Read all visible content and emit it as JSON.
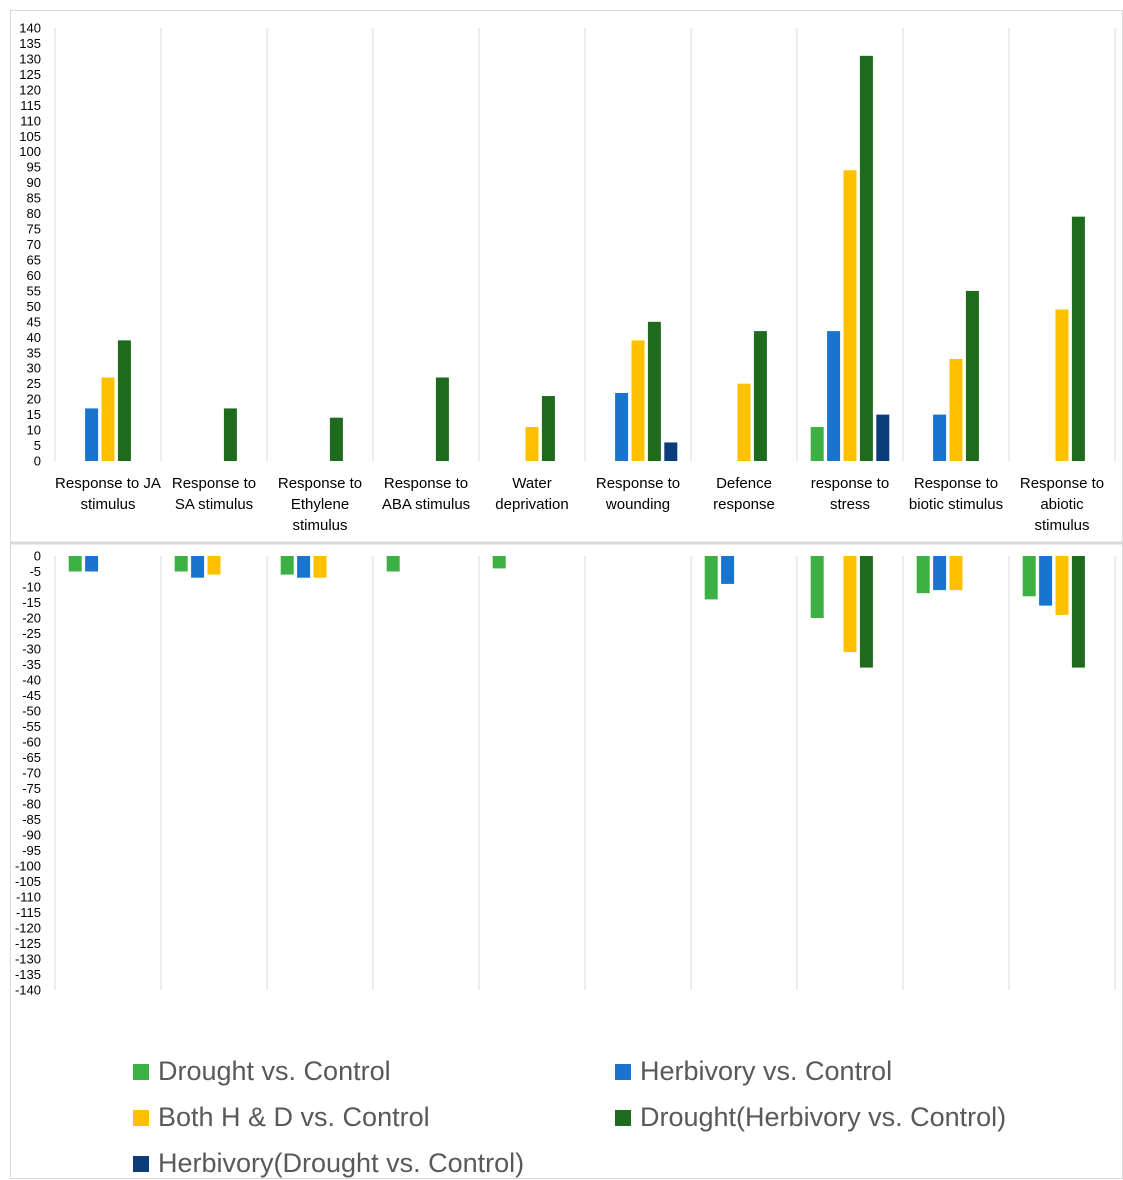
{
  "chart_data": [
    {
      "type": "bar",
      "panel": "upregulated",
      "ylim": [
        0,
        140
      ],
      "ytick_step": 5,
      "categories": [
        "Response to JA stimulus",
        "Response to SA stimulus",
        "Response to Ethylene stimulus",
        "Response to ABA stimulus",
        "Water deprivation",
        "Response to wounding",
        "Defence response",
        "response to stress",
        "Response to biotic stimulus",
        "Response to abiotic stimulus"
      ],
      "category_label_lines": [
        [
          "Response to JA",
          "stimulus"
        ],
        [
          "Response to",
          "SA stimulus"
        ],
        [
          "Response to",
          "Ethylene",
          "stimulus"
        ],
        [
          "Response to",
          "ABA stimulus"
        ],
        [
          "Water",
          "deprivation"
        ],
        [
          "Response to",
          "wounding"
        ],
        [
          "Defence",
          "response"
        ],
        [
          "response to",
          "stress"
        ],
        [
          "Response to",
          "biotic stimulus"
        ],
        [
          "Response to",
          "abiotic",
          "stimulus"
        ]
      ],
      "series": [
        {
          "name": "Drought vs. Control",
          "color": "#3cb043",
          "values": [
            0,
            0,
            0,
            0,
            0,
            0,
            0,
            11,
            0,
            0
          ]
        },
        {
          "name": "Herbivory vs. Control",
          "color": "#1874cd",
          "values": [
            17,
            0,
            0,
            0,
            0,
            22,
            0,
            42,
            15,
            0
          ]
        },
        {
          "name": "Both H & D vs. Control",
          "color": "#ffc000",
          "values": [
            27,
            0,
            0,
            0,
            11,
            39,
            25,
            94,
            33,
            49
          ]
        },
        {
          "name": "Drought(Herbivory vs. Control)",
          "color": "#1e6b1e",
          "values": [
            39,
            17,
            14,
            27,
            21,
            45,
            42,
            131,
            55,
            79
          ]
        },
        {
          "name": "Herbivory(Drought vs. Control)",
          "color": "#0a3d7a",
          "values": [
            0,
            0,
            0,
            0,
            0,
            6,
            0,
            15,
            0,
            0
          ]
        }
      ]
    },
    {
      "type": "bar",
      "panel": "downregulated",
      "ylim": [
        -140,
        0
      ],
      "ytick_step": 5,
      "categories": [
        "Response to JA stimulus",
        "Response to SA stimulus",
        "Response to Ethylene stimulus",
        "Response to ABA stimulus",
        "Water deprivation",
        "Response to wounding",
        "Defence response",
        "response to stress",
        "Response to biotic stimulus",
        "Response to abiotic stimulus"
      ],
      "series": [
        {
          "name": "Drought vs. Control",
          "color": "#3cb043",
          "values": [
            -5,
            -5,
            -6,
            -5,
            -4,
            0,
            -14,
            -20,
            -12,
            -13
          ]
        },
        {
          "name": "Herbivory vs. Control",
          "color": "#1874cd",
          "values": [
            -5,
            -7,
            -7,
            0,
            0,
            0,
            -9,
            0,
            -11,
            -16
          ]
        },
        {
          "name": "Both H & D vs. Control",
          "color": "#ffc000",
          "values": [
            0,
            -6,
            -7,
            0,
            0,
            0,
            0,
            -31,
            -11,
            -19
          ]
        },
        {
          "name": "Drought(Herbivory vs. Control)",
          "color": "#1e6b1e",
          "values": [
            0,
            0,
            0,
            0,
            0,
            0,
            0,
            -36,
            0,
            -36
          ]
        },
        {
          "name": "Herbivory(Drought vs. Control)",
          "color": "#0a3d7a",
          "values": [
            0,
            0,
            0,
            0,
            0,
            0,
            0,
            0,
            0,
            0
          ]
        }
      ]
    }
  ],
  "legend": {
    "items": [
      {
        "label": "Drought vs. Control",
        "color": "#3cb043"
      },
      {
        "label": "Herbivory vs. Control",
        "color": "#1874cd"
      },
      {
        "label": "Both H & D vs. Control",
        "color": "#ffc000"
      },
      {
        "label": "Drought(Herbivory vs. Control)",
        "color": "#1e6b1e"
      },
      {
        "label": "Herbivory(Drought vs. Control)",
        "color": "#0a3d7a"
      }
    ]
  }
}
